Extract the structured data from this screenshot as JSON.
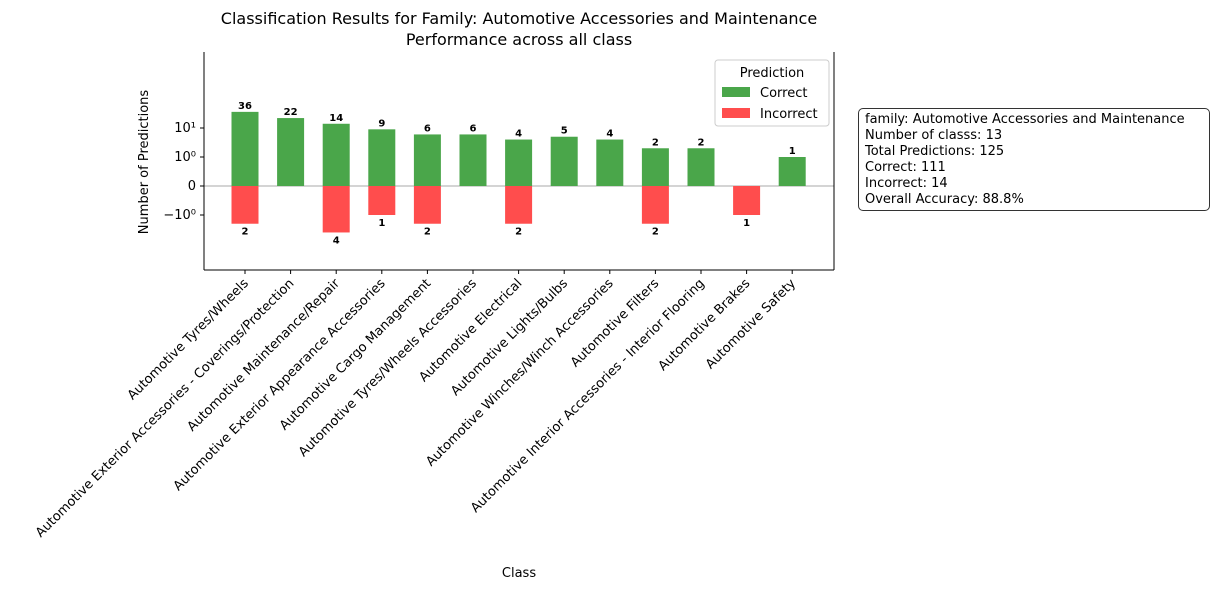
{
  "chart_data": {
    "type": "bar",
    "title": "Classification Results for Family: Automotive Accessories and Maintenance",
    "subtitle": "Performance across all class",
    "xlabel": "Class",
    "ylabel": "Number of Predictions",
    "yscale": "symlog",
    "y_ticks": [
      {
        "value": 10,
        "label": "10¹"
      },
      {
        "value": 1,
        "label": "10⁰"
      },
      {
        "value": 0,
        "label": "0"
      },
      {
        "value": -1,
        "label": "−10⁰"
      }
    ],
    "ylim": [
      -6,
      45
    ],
    "legend_position": "top-right",
    "legend_title": "Prediction",
    "categories": [
      "Automotive Tyres/Wheels",
      "Automotive Exterior Accessories - Coverings/Protection",
      "Automotive Maintenance/Repair",
      "Automotive Exterior Appearance Accessories",
      "Automotive Cargo Management",
      "Automotive Tyres/Wheels Accessories",
      "Automotive Electrical",
      "Automotive Lights/Bulbs",
      "Automotive Winches/Winch Accessories",
      "Automotive Filters",
      "Automotive Interior Accessories - Interior Flooring",
      "Automotive Brakes",
      "Automotive Safety"
    ],
    "series": [
      {
        "name": "Correct",
        "color": "#4aa64a",
        "values": [
          36,
          22,
          14,
          9,
          6,
          6,
          4,
          5,
          4,
          2,
          2,
          0,
          1
        ]
      },
      {
        "name": "Incorrect",
        "color": "#ff4d4d",
        "values": [
          2,
          0,
          4,
          1,
          2,
          0,
          2,
          0,
          0,
          2,
          0,
          1,
          0
        ]
      }
    ]
  },
  "summary": {
    "family": "family: Automotive Accessories and Maintenance",
    "num_classes": "Number of classs: 13",
    "total": "Total Predictions: 125",
    "correct": "Correct: 111",
    "incorrect": "Incorrect: 14",
    "accuracy": "Overall Accuracy: 88.8%"
  }
}
